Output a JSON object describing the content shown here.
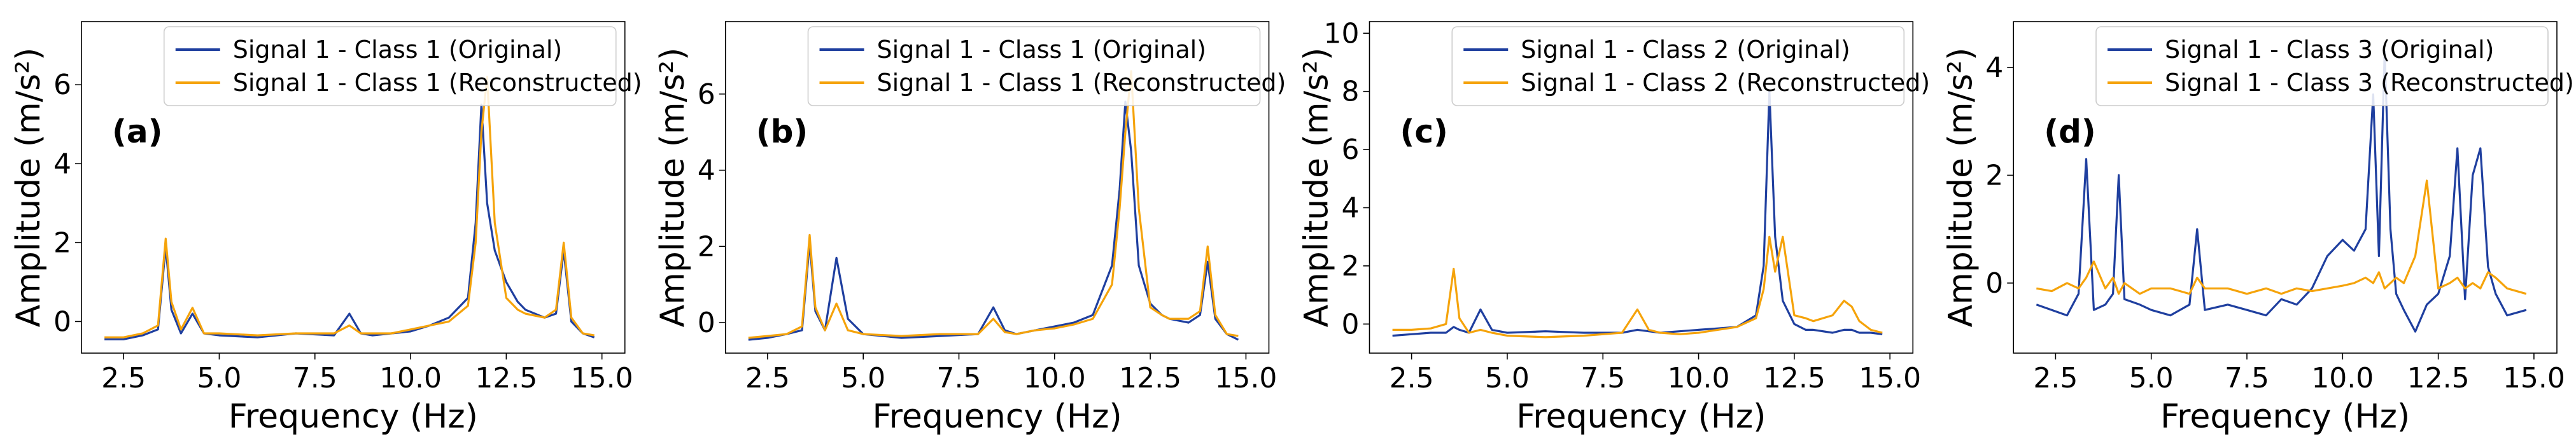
{
  "chart_data": [
    {
      "type": "line",
      "panel_label": "(a)",
      "xlabel": "Frequency (Hz)",
      "ylabel": "Amplitude (m/s²)",
      "xlim": [
        1.4,
        15.6
      ],
      "ylim": [
        -0.8,
        7.6
      ],
      "xticks": [
        2.5,
        5.0,
        7.5,
        10.0,
        12.5,
        15.0
      ],
      "xtick_labels": [
        "2.5",
        "5.0",
        "7.5",
        "10.0",
        "12.5",
        "15.0"
      ],
      "yticks": [
        0,
        2,
        4,
        6
      ],
      "ytick_labels": [
        "0",
        "2",
        "4",
        "6"
      ],
      "legend_position": "top-right",
      "colors": {
        "original": "#1f3f9f",
        "reconstructed": "#f5a30a"
      },
      "series": [
        {
          "name": "Signal 1 - Class 1 (Original)",
          "x": [
            2.0,
            2.5,
            3.0,
            3.4,
            3.6,
            3.75,
            4.0,
            4.3,
            4.6,
            5.0,
            6.0,
            7.0,
            8.0,
            8.4,
            8.7,
            9.0,
            9.5,
            10.0,
            10.5,
            11.0,
            11.5,
            11.7,
            11.85,
            12.0,
            12.2,
            12.5,
            12.8,
            13.0,
            13.5,
            13.8,
            14.0,
            14.2,
            14.5,
            14.8
          ],
          "values": [
            -0.45,
            -0.45,
            -0.35,
            -0.2,
            1.9,
            0.3,
            -0.3,
            0.2,
            -0.3,
            -0.35,
            -0.4,
            -0.3,
            -0.35,
            0.2,
            -0.3,
            -0.35,
            -0.3,
            -0.25,
            -0.1,
            0.1,
            0.6,
            2.5,
            5.5,
            3.0,
            1.8,
            1.0,
            0.5,
            0.3,
            0.1,
            0.2,
            1.8,
            0.0,
            -0.3,
            -0.4
          ]
        },
        {
          "name": "Signal 1 - Class 1 (Reconstructed)",
          "x": [
            2.0,
            2.5,
            3.0,
            3.4,
            3.6,
            3.75,
            4.0,
            4.3,
            4.6,
            5.0,
            6.0,
            7.0,
            8.0,
            8.4,
            8.7,
            9.0,
            9.5,
            10.0,
            10.5,
            11.0,
            11.5,
            11.7,
            11.85,
            12.0,
            12.2,
            12.5,
            12.8,
            13.0,
            13.5,
            13.8,
            14.0,
            14.2,
            14.5,
            14.8
          ],
          "values": [
            -0.4,
            -0.4,
            -0.3,
            -0.1,
            2.1,
            0.5,
            -0.2,
            0.35,
            -0.3,
            -0.3,
            -0.35,
            -0.3,
            -0.3,
            -0.1,
            -0.3,
            -0.3,
            -0.3,
            -0.2,
            -0.1,
            0.0,
            0.4,
            2.0,
            4.8,
            6.2,
            2.5,
            0.6,
            0.3,
            0.2,
            0.1,
            0.3,
            2.0,
            0.1,
            -0.3,
            -0.35
          ]
        }
      ]
    },
    {
      "type": "line",
      "panel_label": "(b)",
      "xlabel": "Frequency (Hz)",
      "ylabel": "Amplitude (m/s²)",
      "xlim": [
        1.4,
        15.6
      ],
      "ylim": [
        -0.8,
        7.9
      ],
      "xticks": [
        2.5,
        5.0,
        7.5,
        10.0,
        12.5,
        15.0
      ],
      "xtick_labels": [
        "2.5",
        "5.0",
        "7.5",
        "10.0",
        "12.5",
        "15.0"
      ],
      "yticks": [
        0,
        2,
        4,
        6
      ],
      "ytick_labels": [
        "0",
        "2",
        "4",
        "6"
      ],
      "legend_position": "top-right",
      "colors": {
        "original": "#1f3f9f",
        "reconstructed": "#f5a30a"
      },
      "series": [
        {
          "name": "Signal 1 - Class 1 (Original)",
          "x": [
            2.0,
            2.5,
            3.0,
            3.4,
            3.6,
            3.75,
            4.0,
            4.3,
            4.6,
            5.0,
            6.0,
            7.0,
            8.0,
            8.4,
            8.7,
            9.0,
            9.5,
            10.0,
            10.5,
            11.0,
            11.5,
            11.7,
            11.85,
            12.0,
            12.2,
            12.5,
            12.8,
            13.0,
            13.5,
            13.8,
            14.0,
            14.2,
            14.5,
            14.8
          ],
          "values": [
            -0.45,
            -0.4,
            -0.3,
            -0.2,
            2.1,
            0.3,
            -0.2,
            1.7,
            0.1,
            -0.3,
            -0.4,
            -0.35,
            -0.3,
            0.4,
            -0.2,
            -0.3,
            -0.2,
            -0.1,
            0.0,
            0.2,
            1.5,
            3.5,
            5.8,
            4.5,
            1.5,
            0.5,
            0.2,
            0.1,
            0.0,
            0.2,
            1.6,
            0.1,
            -0.3,
            -0.45
          ]
        },
        {
          "name": "Signal 1 - Class 1 (Reconstructed)",
          "x": [
            2.0,
            2.5,
            3.0,
            3.4,
            3.6,
            3.75,
            4.0,
            4.3,
            4.6,
            5.0,
            6.0,
            7.0,
            8.0,
            8.4,
            8.7,
            9.0,
            9.5,
            10.0,
            10.5,
            11.0,
            11.5,
            11.7,
            11.85,
            12.0,
            12.2,
            12.5,
            12.8,
            13.0,
            13.5,
            13.8,
            14.0,
            14.2,
            14.5,
            14.8
          ],
          "values": [
            -0.4,
            -0.35,
            -0.3,
            -0.1,
            2.3,
            0.4,
            -0.2,
            0.5,
            -0.2,
            -0.3,
            -0.35,
            -0.3,
            -0.3,
            0.1,
            -0.25,
            -0.3,
            -0.2,
            -0.15,
            -0.05,
            0.1,
            1.0,
            3.0,
            5.0,
            6.6,
            3.0,
            0.4,
            0.2,
            0.1,
            0.1,
            0.3,
            2.0,
            0.2,
            -0.3,
            -0.35
          ]
        }
      ]
    },
    {
      "type": "line",
      "panel_label": "(c)",
      "xlabel": "Frequency (Hz)",
      "ylabel": "Amplitude (m/s²)",
      "xlim": [
        1.4,
        15.6
      ],
      "ylim": [
        -1.0,
        10.4
      ],
      "xticks": [
        2.5,
        5.0,
        7.5,
        10.0,
        12.5,
        15.0
      ],
      "xtick_labels": [
        "2.5",
        "5.0",
        "7.5",
        "10.0",
        "12.5",
        "15.0"
      ],
      "yticks": [
        0,
        2,
        4,
        6,
        8,
        10
      ],
      "ytick_labels": [
        "0",
        "2",
        "4",
        "6",
        "8",
        "10"
      ],
      "legend_position": "top-right",
      "colors": {
        "original": "#1f3f9f",
        "reconstructed": "#f5a30a"
      },
      "series": [
        {
          "name": "Signal 1 - Class 2 (Original)",
          "x": [
            2.0,
            2.5,
            3.0,
            3.4,
            3.6,
            3.75,
            4.0,
            4.3,
            4.6,
            5.0,
            6.0,
            7.0,
            8.0,
            8.4,
            8.7,
            9.0,
            9.5,
            10.0,
            10.5,
            11.0,
            11.5,
            11.7,
            11.85,
            12.0,
            12.2,
            12.5,
            12.8,
            13.0,
            13.5,
            13.8,
            14.0,
            14.2,
            14.5,
            14.8
          ],
          "values": [
            -0.4,
            -0.35,
            -0.3,
            -0.3,
            -0.1,
            -0.2,
            -0.3,
            0.5,
            -0.2,
            -0.3,
            -0.25,
            -0.3,
            -0.3,
            -0.2,
            -0.25,
            -0.3,
            -0.25,
            -0.2,
            -0.15,
            -0.1,
            0.3,
            2.0,
            8.0,
            3.0,
            0.8,
            0.0,
            -0.2,
            -0.2,
            -0.3,
            -0.2,
            -0.2,
            -0.3,
            -0.3,
            -0.35
          ]
        },
        {
          "name": "Signal 1 - Class 2 (Reconstructed)",
          "x": [
            2.0,
            2.5,
            3.0,
            3.4,
            3.6,
            3.75,
            4.0,
            4.3,
            4.6,
            5.0,
            6.0,
            7.0,
            8.0,
            8.4,
            8.7,
            9.0,
            9.5,
            10.0,
            10.5,
            11.0,
            11.5,
            11.7,
            11.85,
            12.0,
            12.2,
            12.5,
            12.8,
            13.0,
            13.5,
            13.8,
            14.0,
            14.2,
            14.5,
            14.8
          ],
          "values": [
            -0.2,
            -0.2,
            -0.15,
            0.0,
            1.9,
            0.2,
            -0.3,
            -0.2,
            -0.3,
            -0.4,
            -0.45,
            -0.4,
            -0.3,
            0.5,
            -0.2,
            -0.3,
            -0.35,
            -0.3,
            -0.2,
            -0.1,
            0.2,
            1.2,
            3.0,
            1.8,
            3.0,
            0.3,
            0.2,
            0.1,
            0.3,
            0.8,
            0.6,
            0.1,
            -0.2,
            -0.3
          ]
        }
      ]
    },
    {
      "type": "line",
      "panel_label": "(d)",
      "xlabel": "Frequency (Hz)",
      "ylabel": "Amplitude (m/s²)",
      "xlim": [
        1.4,
        15.6
      ],
      "ylim": [
        -1.3,
        4.85
      ],
      "xticks": [
        2.5,
        5.0,
        7.5,
        10.0,
        12.5,
        15.0
      ],
      "xtick_labels": [
        "2.5",
        "5.0",
        "7.5",
        "10.0",
        "12.5",
        "15.0"
      ],
      "yticks": [
        0,
        2,
        4
      ],
      "ytick_labels": [
        "0",
        "2",
        "4"
      ],
      "legend_position": "top-right",
      "colors": {
        "original": "#1f3f9f",
        "reconstructed": "#f5a30a"
      },
      "series": [
        {
          "name": "Signal 1 - Class 3 (Original)",
          "x": [
            2.0,
            2.4,
            2.8,
            3.1,
            3.3,
            3.5,
            3.8,
            4.0,
            4.15,
            4.3,
            4.7,
            5.0,
            5.5,
            6.0,
            6.2,
            6.4,
            7.0,
            7.5,
            8.0,
            8.4,
            8.8,
            9.2,
            9.6,
            10.0,
            10.3,
            10.6,
            10.8,
            10.95,
            11.1,
            11.25,
            11.4,
            11.6,
            11.9,
            12.2,
            12.5,
            12.8,
            13.0,
            13.2,
            13.4,
            13.6,
            13.8,
            14.0,
            14.3,
            14.8
          ],
          "values": [
            -0.4,
            -0.5,
            -0.6,
            -0.2,
            2.3,
            -0.5,
            -0.4,
            -0.2,
            2.0,
            -0.3,
            -0.4,
            -0.5,
            -0.6,
            -0.4,
            1.0,
            -0.5,
            -0.4,
            -0.5,
            -0.6,
            -0.3,
            -0.4,
            -0.1,
            0.5,
            0.8,
            0.6,
            1.0,
            3.5,
            0.5,
            4.3,
            1.0,
            -0.2,
            -0.5,
            -0.9,
            -0.4,
            -0.2,
            0.5,
            2.5,
            -0.3,
            2.0,
            2.5,
            0.3,
            -0.2,
            -0.6,
            -0.5
          ]
        },
        {
          "name": "Signal 1 - Class 3 (Reconstructed)",
          "x": [
            2.0,
            2.4,
            2.8,
            3.1,
            3.3,
            3.5,
            3.8,
            4.0,
            4.15,
            4.3,
            4.7,
            5.0,
            5.5,
            6.0,
            6.2,
            6.4,
            7.0,
            7.5,
            8.0,
            8.4,
            8.8,
            9.2,
            9.6,
            10.0,
            10.3,
            10.6,
            10.8,
            10.95,
            11.1,
            11.25,
            11.4,
            11.6,
            11.9,
            12.2,
            12.5,
            12.8,
            13.0,
            13.2,
            13.4,
            13.6,
            13.8,
            14.0,
            14.3,
            14.8
          ],
          "values": [
            -0.1,
            -0.15,
            0.0,
            -0.1,
            0.1,
            0.4,
            -0.1,
            0.1,
            -0.2,
            0.0,
            -0.2,
            -0.1,
            -0.1,
            -0.2,
            0.1,
            -0.1,
            -0.1,
            -0.2,
            -0.1,
            -0.2,
            -0.1,
            -0.15,
            -0.1,
            -0.05,
            0.0,
            0.1,
            0.0,
            0.2,
            -0.1,
            0.0,
            0.1,
            0.0,
            0.5,
            1.9,
            -0.1,
            0.0,
            0.1,
            -0.1,
            0.0,
            -0.1,
            0.2,
            0.1,
            -0.1,
            -0.2
          ]
        }
      ]
    }
  ]
}
